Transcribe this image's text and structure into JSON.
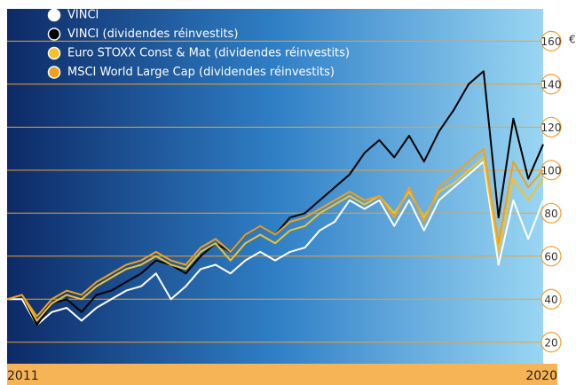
{
  "chart_data": {
    "type": "line",
    "x": [
      2011,
      2011.25,
      2011.5,
      2011.75,
      2012,
      2012.25,
      2012.5,
      2012.75,
      2013,
      2013.25,
      2013.5,
      2013.75,
      2014,
      2014.25,
      2014.5,
      2014.75,
      2015,
      2015.25,
      2015.5,
      2015.75,
      2016,
      2016.25,
      2016.5,
      2016.75,
      2017,
      2017.25,
      2017.5,
      2017.75,
      2018,
      2018.25,
      2018.5,
      2018.75,
      2019,
      2019.25,
      2019.5,
      2019.75,
      2020
    ],
    "series": [
      {
        "name": "VINCI",
        "color": "#ffffff",
        "values": [
          40,
          40,
          28,
          34,
          36,
          30,
          36,
          40,
          44,
          46,
          52,
          40,
          46,
          54,
          56,
          52,
          58,
          62,
          58,
          62,
          64,
          72,
          76,
          86,
          82,
          86,
          74,
          86,
          72,
          86,
          92,
          98,
          104,
          56,
          86,
          68,
          86
        ]
      },
      {
        "name": "VINCI (dividendes réinvestits)",
        "color": "#000000",
        "values": [
          40,
          42,
          28,
          38,
          40,
          34,
          42,
          44,
          48,
          52,
          58,
          56,
          52,
          60,
          66,
          62,
          70,
          74,
          70,
          78,
          80,
          86,
          92,
          98,
          108,
          114,
          106,
          116,
          104,
          118,
          128,
          140,
          146,
          78,
          124,
          96,
          112
        ]
      },
      {
        "name": "Euro STOXX Const & Mat (dividendes réinvestits)",
        "color": "#f2c22c",
        "values": [
          40,
          42,
          30,
          38,
          42,
          40,
          46,
          50,
          54,
          56,
          60,
          56,
          54,
          62,
          66,
          58,
          66,
          70,
          66,
          72,
          74,
          80,
          84,
          88,
          84,
          88,
          80,
          90,
          78,
          90,
          94,
          100,
          106,
          62,
          96,
          86,
          96
        ]
      },
      {
        "name": "MSCI World Large Cap (dividendes réinvestits)",
        "color": "#f0a020",
        "values": [
          40,
          42,
          32,
          40,
          44,
          42,
          48,
          52,
          56,
          58,
          62,
          58,
          56,
          64,
          68,
          62,
          70,
          74,
          70,
          76,
          78,
          82,
          86,
          90,
          86,
          88,
          78,
          92,
          76,
          92,
          98,
          104,
          110,
          66,
          104,
          92,
          100
        ]
      }
    ],
    "xlim": [
      2011,
      2020
    ],
    "xticks": [
      2011,
      2020
    ],
    "ylim": [
      10,
      175
    ],
    "yticks": [
      20,
      40,
      60,
      80,
      100,
      120,
      140,
      160
    ],
    "y_unit": "€",
    "grid": true
  }
}
